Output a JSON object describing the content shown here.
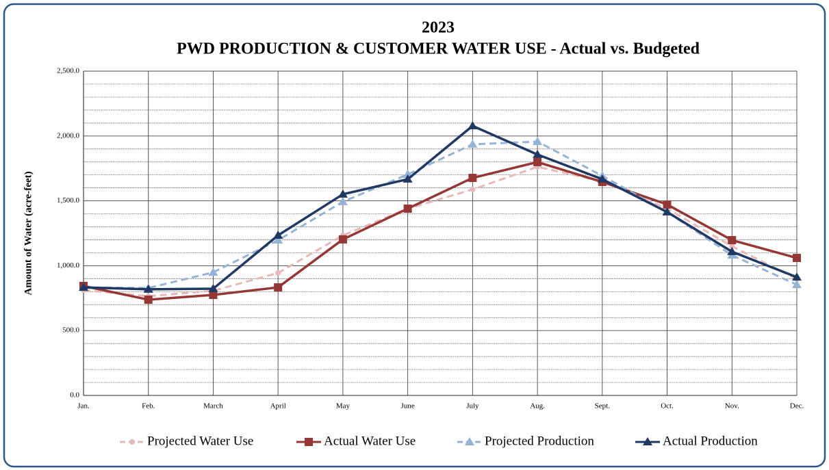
{
  "chart_data": {
    "type": "line",
    "title": "2023",
    "subtitle": "PWD PRODUCTION & CUSTOMER WATER USE - Actual vs. Budgeted",
    "y_label": "Amount of Water (acre-feet)",
    "categories": [
      "Jan.",
      "Feb.",
      "March",
      "April",
      "May",
      "June",
      "July",
      "Aug.",
      "Sept.",
      "Oct.",
      "Nov.",
      "Dec."
    ],
    "series": [
      {
        "name": "Projected Water Use",
        "color": "#e6b8b7",
        "dashed": true,
        "marker": "circle",
        "values": [
          812,
          765,
          807,
          944,
          1234,
          1440,
          1588,
          1762,
          1651,
          1440,
          1150,
          897
        ]
      },
      {
        "name": "Actual Water Use",
        "color": "#953735",
        "dashed": false,
        "marker": "square",
        "values": [
          844,
          738,
          775,
          833,
          1203,
          1440,
          1677,
          1799,
          1646,
          1472,
          1197,
          1060
        ]
      },
      {
        "name": "Projected Production",
        "color": "#95b3d7",
        "dashed": true,
        "marker": "triangle",
        "values": [
          833,
          828,
          949,
          1197,
          1493,
          1704,
          1936,
          1957,
          1693,
          1414,
          1081,
          854
        ]
      },
      {
        "name": "Actual Production",
        "color": "#1f3864",
        "dashed": false,
        "marker": "triangle",
        "values": [
          833,
          818,
          823,
          1234,
          1551,
          1667,
          2078,
          1857,
          1667,
          1414,
          1108,
          912
        ]
      }
    ],
    "ylim": [
      0,
      2500
    ],
    "yticks": [
      {
        "value": 0,
        "label": "0.0"
      },
      {
        "value": 500,
        "label": "500.0"
      },
      {
        "value": 1000,
        "label": "1,000.0"
      },
      {
        "value": 1500,
        "label": "1,500.0"
      },
      {
        "value": 2000,
        "label": "2,000.0"
      },
      {
        "value": 2500,
        "label": "2,500.0"
      }
    ],
    "y_minor_ticks": [
      100,
      200,
      300,
      400,
      600,
      700,
      800,
      900,
      1100,
      1200,
      1300,
      1400,
      1600,
      1700,
      1800,
      1900,
      2100,
      2200,
      2300,
      2400
    ],
    "grid": true,
    "legend": "bottom"
  }
}
